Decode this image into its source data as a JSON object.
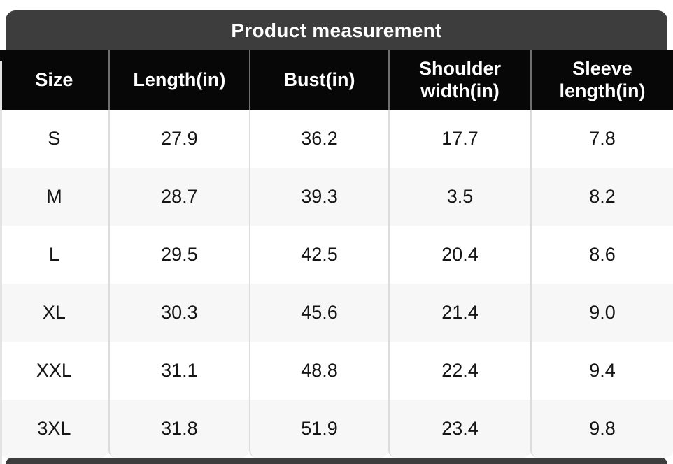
{
  "title": "Product measurement",
  "table": {
    "columns": [
      "Size",
      "Length(in)",
      "Bust(in)",
      "Shoulder width(in)",
      "Sleeve length(in)"
    ],
    "rows": [
      [
        "S",
        "27.9",
        "36.2",
        "17.7",
        "7.8"
      ],
      [
        "M",
        "28.7",
        "39.3",
        "3.5",
        "8.2"
      ],
      [
        "L",
        "29.5",
        "42.5",
        "20.4",
        "8.6"
      ],
      [
        "XL",
        "30.3",
        "45.6",
        "21.4",
        "9.0"
      ],
      [
        "XXL",
        "31.1",
        "48.8",
        "22.4",
        "9.4"
      ],
      [
        "3XL",
        "31.8",
        "51.9",
        "23.4",
        "9.8"
      ]
    ]
  },
  "colors": {
    "title_bar_bg": "#3d3d3d",
    "title_text": "#ffffff",
    "header_bg": "#070707",
    "header_text": "#ffffff",
    "row_bg": "#ffffff",
    "row_alt_bg": "#f7f7f7",
    "body_text": "#151515",
    "body_divider": "#dcdcdc",
    "header_divider": "#6e6e6e"
  },
  "chart_data": {
    "type": "table",
    "title": "Product measurement",
    "columns": [
      "Size",
      "Length(in)",
      "Bust(in)",
      "Shoulder width(in)",
      "Sleeve length(in)"
    ],
    "rows": [
      [
        "S",
        27.9,
        36.2,
        17.7,
        7.8
      ],
      [
        "M",
        28.7,
        39.3,
        3.5,
        8.2
      ],
      [
        "L",
        29.5,
        42.5,
        20.4,
        8.6
      ],
      [
        "XL",
        30.3,
        45.6,
        21.4,
        9.0
      ],
      [
        "XXL",
        31.1,
        48.8,
        22.4,
        9.4
      ],
      [
        "3XL",
        31.8,
        51.9,
        23.4,
        9.8
      ]
    ],
    "layout": {
      "title_position": "top-center",
      "row_striping": true,
      "units": "inches"
    }
  }
}
